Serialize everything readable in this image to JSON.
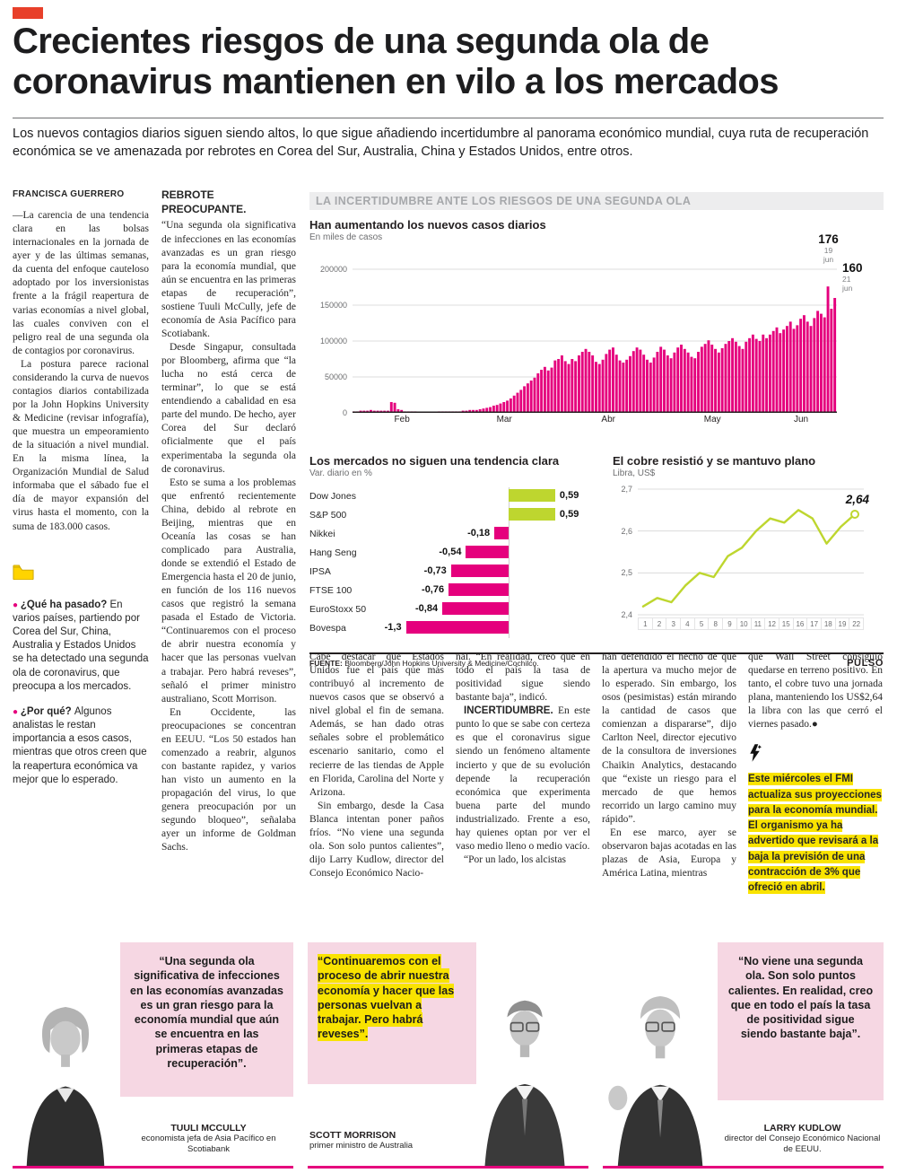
{
  "colors": {
    "tab_red": "#e8402a",
    "accent_magenta": "#e5007d",
    "positive_green": "#bed62f",
    "highlight_yellow": "#f9e300",
    "quote_pink": "#f6d7e3"
  },
  "headline": "Crecientes riesgos de una segunda ola de coronavirus mantienen en vilo a los mercados",
  "subheadline": "Los nuevos contagios diarios siguen siendo altos, lo que sigue añadiendo incertidumbre al panorama económico mundial, cuya ruta de recuperación económica se ve amenazada por rebrotes en Corea del Sur, Australia, China y Estados Unidos, entre otros.",
  "byline": "FRANCISCA GUERRERO",
  "article": {
    "col1_paras": [
      "—La carencia de una tendencia clara en las bolsas internacionales en la jornada de ayer y de las últimas semanas, da cuenta del enfoque cauteloso adoptado por los inversionistas frente a la frágil reapertura de varias economías a nivel global, las cuales conviven con el peligro real de una segunda ola de contagios por coronavirus.",
      "La postura parece racional considerando la curva de nuevos contagios diarios contabilizada por la John Hopkins University & Medicine (revisar infografía), que muestra un empeoramiento de la situación a nivel mundial. En la misma línea, la Organización Mundial de Salud informaba que el sábado fue el día de mayor expansión del virus hasta el momento, con la suma de 183.000 casos."
    ],
    "qa": [
      {
        "q": "¿Qué ha pasado?",
        "text": "En varios países, partiendo por Corea del Sur, China, Australia y Estados Unidos se ha detectado una segunda ola de coronavirus, que preocupa a los mercados."
      },
      {
        "q": "¿Por qué?",
        "text": "Algunos analistas le restan importancia a esos casos, mientras que otros creen que la reapertura económica va mejor que lo esperado."
      }
    ],
    "col2_heading": "REBROTE PREOCUPANTE.",
    "col2_paras": [
      "“Una segunda ola significativa de infecciones en las economías avanzadas es un gran riesgo para la economía mundial, que aún se encuentra en las primeras etapas de recuperación”, sostiene Tuuli McCully, jefe de economía de Asia Pacífico para Scotiabank.",
      "Desde Singapur, consultada por Bloomberg, afirma que “la lucha no está cerca de terminar”, lo que se está entendiendo a cabalidad en esa parte del mundo. De hecho, ayer Corea del Sur declaró oficialmente que el país experimentaba la segunda ola de coronavirus.",
      "Esto se suma a los problemas que enfrentó recientemente China, debido al rebrote en Beijing, mientras que en Oceanía las cosas se han complicado para Australia, donde se extendió el Estado de Emergencia hasta el 20 de junio, en función de los 116 nuevos casos que registró la semana pasada el Estado de Victoria. “Continuaremos con el proceso de abrir nuestra economía y hacer que las personas vuelvan a trabajar. Pero habrá reveses”, señaló el primer ministro australiano, Scott Morrison.",
      "En Occidente, las preocupaciones se concentran en EEUU. “Los 50 estados han comenzado a reabrir, algunos con bastante rapidez, y varios han visto un aumento en la propagación del virus, lo que genera preocupación por un segundo bloqueo”, señalaba ayer un informe de Goldman Sachs."
    ],
    "col3_paras": [
      "Cabe destacar que Estados Unidos fue el país que más contribuyó al incremento de nuevos casos que se observó a nivel global el fin de semana. Además, se han dado otras señales sobre el problemático escenario sanitario, como el recierre de las tiendas de Apple en Florida, Carolina del Norte y Arizona.",
      "Sin embargo, desde la Casa Blanca intentan poner paños fríos. “No viene una segunda ola. Son solo puntos calientes”, dijo Larry Kudlow, director del Consejo Económico Nacio-"
    ],
    "col4_para1": "nal. “En realidad, creo que en todo el país la tasa de positividad sigue siendo bastante baja”, indicó.",
    "col4_lead": "INCERTIDUMBRE.",
    "col4_para2": "En este punto lo que se sabe con certeza es que el coronavirus sigue siendo un fenómeno altamente incierto y que de su evolución depende la recuperación económica que experimenta buena parte del mundo industrializado. Frente a eso, hay quienes optan por ver el vaso medio lleno o medio vacío.",
    "col4_para3": "“Por un lado, los alcistas",
    "col5_paras": [
      "han defendido el hecho de que la apertura va mucho mejor de lo esperado. Sin embargo, los osos (pesimistas) están mirando la cantidad de casos que comienzan a dispararse”, dijo Carlton Neel, director ejecutivo de la consultora de inversiones Chaikin Analytics, destacando que “existe un riesgo para el mercado de que hemos recorrido un largo camino muy rápido”.",
      "En ese marco, ayer se observaron bajas acotadas en las plazas de Asia, Europa y América Latina, mientras"
    ],
    "col6_para": "que Wall Street consiguió quedarse en terreno positivo. En tanto, el cobre tuvo una jornada plana, manteniendo los US$2,64 la libra con las que cerró el viernes pasado.●",
    "fmi_note": "Este miércoles el FMI actualiza sus proyecciones para la economía mundial. El organismo ya ha advertido que revisará a la baja la previsión de una contracción de 3% que ofreció en abril."
  },
  "infographic": {
    "title": "LA INCERTIDUMBRE ANTE LOS RIESGOS DE UNA SEGUNDA OLA",
    "source_label": "FUENTE:",
    "source_text": " Bloomberg/John Hopkins University & Medicine/Cochilco.",
    "brand": "PULSO"
  },
  "chart_data": [
    {
      "type": "bar",
      "title": "Han aumentando los nuevos casos diarios",
      "subtitle": "En miles de casos",
      "ymax": 200,
      "yticks": [
        {
          "v": 200,
          "label": "200000"
        },
        {
          "v": 150,
          "label": "150000"
        },
        {
          "v": 100,
          "label": "100000"
        },
        {
          "v": 50,
          "label": "50000"
        },
        {
          "v": 0,
          "label": "0"
        }
      ],
      "months": [
        {
          "label": "Feb",
          "days": 29
        },
        {
          "label": "Mar",
          "days": 31
        },
        {
          "label": "Abr",
          "days": 30
        },
        {
          "label": "May",
          "days": 31
        },
        {
          "label": "Jun",
          "days": 21
        }
      ],
      "bar_color": "#e5007d",
      "values": [
        2,
        2,
        3,
        3,
        3,
        4,
        3,
        3,
        3,
        3,
        3,
        15,
        14,
        5,
        4,
        2,
        2,
        2,
        2,
        1,
        1,
        1,
        1,
        1,
        1,
        2,
        2,
        2,
        2,
        2,
        2,
        2,
        3,
        3,
        4,
        4,
        4,
        5,
        6,
        7,
        8,
        10,
        11,
        13,
        15,
        17,
        20,
        24,
        28,
        32,
        37,
        41,
        45,
        49,
        55,
        60,
        64,
        59,
        63,
        73,
        75,
        80,
        72,
        68,
        75,
        72,
        80,
        85,
        89,
        85,
        80,
        71,
        68,
        74,
        82,
        88,
        91,
        81,
        73,
        70,
        74,
        79,
        86,
        91,
        88,
        81,
        74,
        70,
        77,
        85,
        92,
        88,
        80,
        76,
        84,
        91,
        95,
        89,
        84,
        78,
        76,
        85,
        92,
        96,
        101,
        95,
        89,
        84,
        90,
        96,
        100,
        104,
        99,
        93,
        89,
        99,
        104,
        109,
        103,
        100,
        109,
        104,
        109,
        114,
        119,
        111,
        116,
        121,
        127,
        117,
        122,
        131,
        136,
        127,
        121,
        132,
        142,
        138,
        133,
        176,
        145,
        160
      ],
      "annotations": [
        {
          "value": "176",
          "date": "19 jun",
          "index": 139
        },
        {
          "value": "160",
          "date": "21 jun",
          "index": 141
        }
      ]
    },
    {
      "type": "bar",
      "orientation": "horizontal",
      "title": "Los mercados no siguen una tendencia clara",
      "subtitle": "Var. diario en %",
      "categories": [
        "Dow Jones",
        "S&P 500",
        "Nikkei",
        "Hang Seng",
        "IPSA",
        "FTSE 100",
        "EuroStoxx 50",
        "Bovespa"
      ],
      "values": [
        0.59,
        0.59,
        -0.18,
        -0.54,
        -0.73,
        -0.76,
        -0.84,
        -1.3
      ],
      "labels": [
        "0,59",
        "0,59",
        "-0,18",
        "-0,54",
        "-0,73",
        "-0,76",
        "-0,84",
        "-1,3"
      ],
      "positive_color": "#bed62f",
      "negative_color": "#e5007d"
    },
    {
      "type": "line",
      "title": "El cobre resistió y se mantuvo plano",
      "subtitle": "Libra, US$",
      "x": [
        "1",
        "2",
        "3",
        "4",
        "5",
        "8",
        "9",
        "10",
        "11",
        "12",
        "15",
        "16",
        "17",
        "18",
        "19",
        "22"
      ],
      "values": [
        2.42,
        2.44,
        2.43,
        2.47,
        2.5,
        2.49,
        2.54,
        2.56,
        2.6,
        2.63,
        2.62,
        2.65,
        2.63,
        2.57,
        2.61,
        2.64
      ],
      "ylim": [
        2.4,
        2.7
      ],
      "yticks": [
        {
          "v": 2.7,
          "label": "2,7"
        },
        {
          "v": 2.6,
          "label": "2,6"
        },
        {
          "v": 2.5,
          "label": "2,5"
        },
        {
          "v": 2.4,
          "label": "2,4"
        }
      ],
      "last_label": "2,64",
      "line_color": "#bed62f"
    }
  ],
  "quotes": [
    {
      "quote": "“Una segunda ola significativa de infecciones en las economías avanzadas es un gran riesgo para la economía mundial que aún se encuentra en las primeras etapas de recuperación”.",
      "name": "TUULI MCCULLY",
      "role": "economista jefa de Asia Pacífico en Scotiabank"
    },
    {
      "quote": "“Continuaremos con el proceso de abrir nuestra economía y hacer que las personas vuelvan a trabajar. Pero habrá reveses”.",
      "name": "SCOTT MORRISON",
      "role": "primer ministro de Australia"
    },
    {
      "quote": "“No viene una segunda ola. Son solo puntos calientes. En realidad, creo que en todo el país la tasa de positividad sigue siendo bastante baja”.",
      "name": "LARRY KUDLOW",
      "role": "director del Consejo Económico Nacional de EEUU."
    }
  ]
}
